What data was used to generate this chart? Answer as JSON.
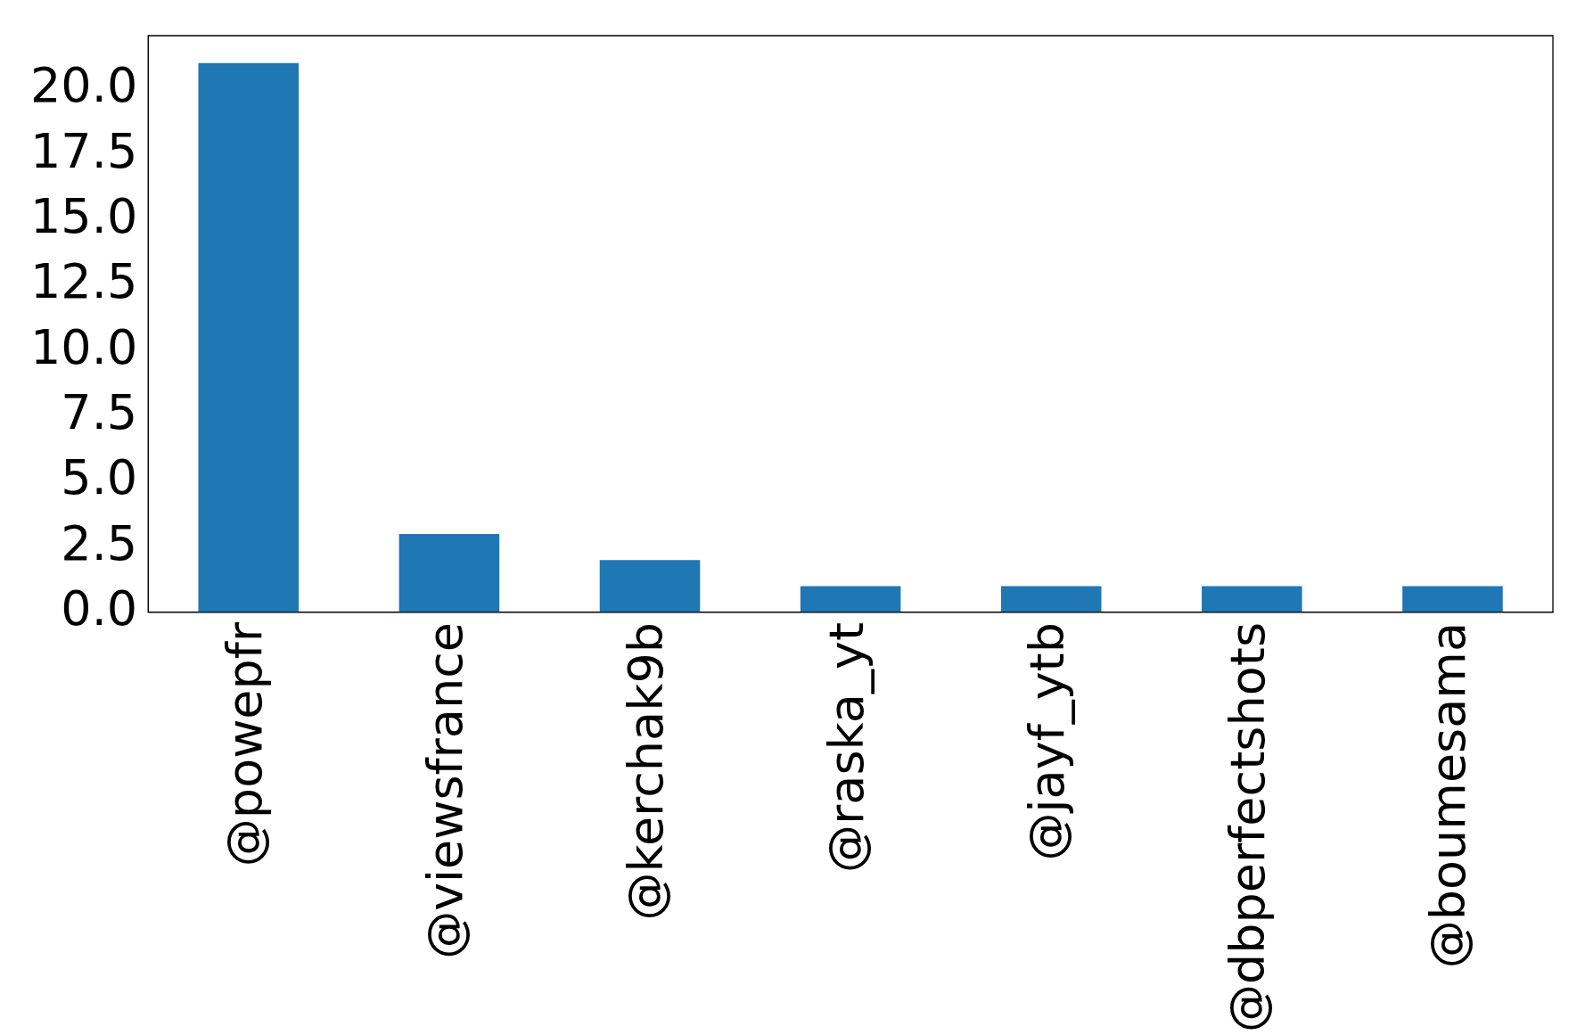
{
  "chart_data": {
    "type": "bar",
    "categories": [
      "@powepfr",
      "@viewsfrance",
      "@kerchak9b",
      "@raska_yt",
      "@jayf_ytb",
      "@dbperfectshots",
      "@boumesama"
    ],
    "values": [
      21,
      3,
      2,
      1,
      1,
      1,
      1
    ],
    "color": "#1f77b4",
    "ylim": [
      0,
      22.05
    ],
    "yticks": [
      {
        "value": 0,
        "label": "0.0"
      },
      {
        "value": 2.5,
        "label": "2.5"
      },
      {
        "value": 5,
        "label": "5.0"
      },
      {
        "value": 7.5,
        "label": "7.5"
      },
      {
        "value": 10,
        "label": "10.0"
      },
      {
        "value": 12.5,
        "label": "12.5"
      },
      {
        "value": 15,
        "label": "15.0"
      },
      {
        "value": 17.5,
        "label": "17.5"
      },
      {
        "value": 20,
        "label": "20.0"
      }
    ],
    "grid": false,
    "legend": false
  }
}
